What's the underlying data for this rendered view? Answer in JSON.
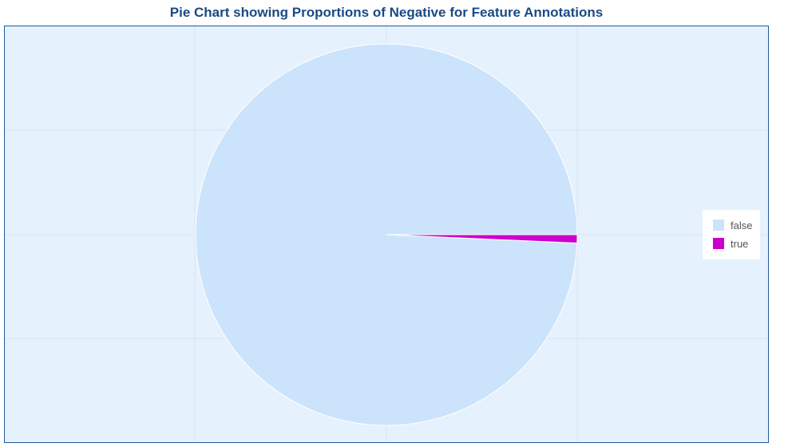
{
  "chart_data": {
    "type": "pie",
    "title": "Pie Chart showing Proportions of Negative for Feature Annotations",
    "slices": [
      {
        "label": "false",
        "value": 0.993,
        "color": "#cce4fb"
      },
      {
        "label": "true",
        "value": 0.007,
        "color": "#cc00cc"
      }
    ],
    "legend_position": "right",
    "grid": true
  },
  "colors": {
    "plot_background": "#e6f1fe",
    "frame_border": "#1f5d99",
    "title_color": "#1a4a85",
    "gridline": "#d8e3f0",
    "slice_stroke": "#ffffff"
  }
}
